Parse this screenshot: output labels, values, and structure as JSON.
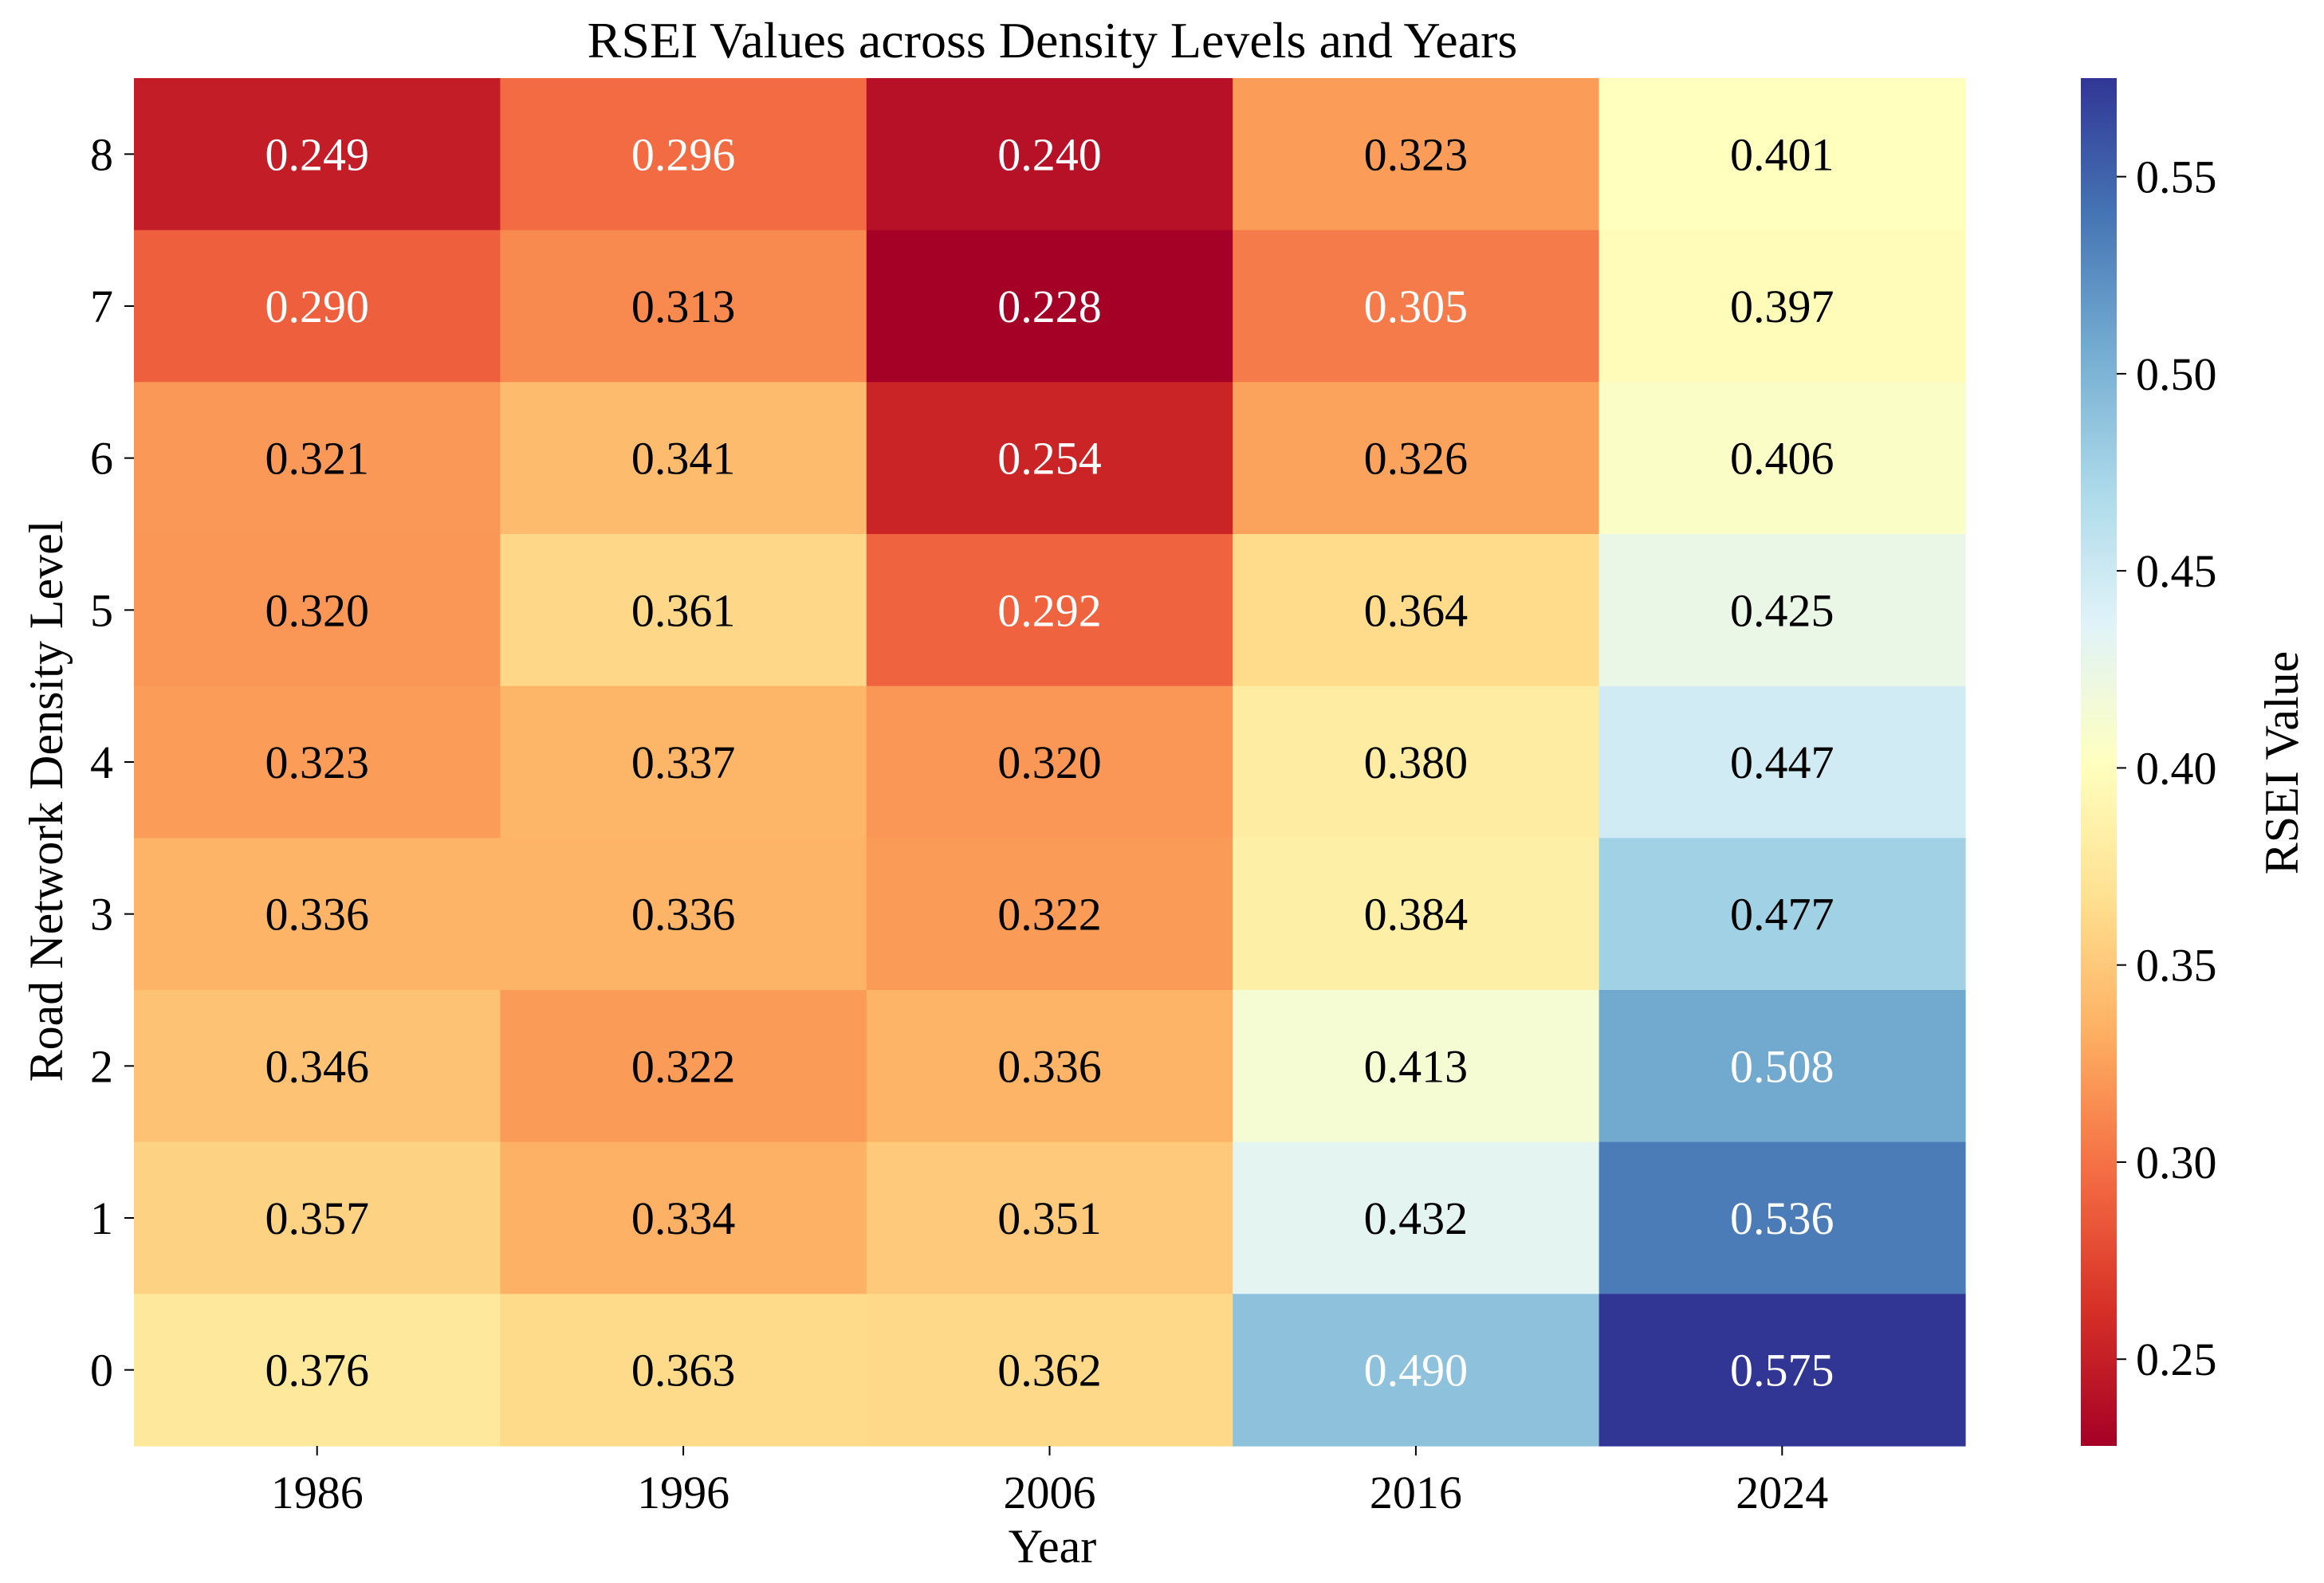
{
  "chart_data": {
    "type": "heatmap",
    "title": "RSEI Values across Density Levels and Years",
    "xlabel": "Year",
    "ylabel": "Road Network Density Level",
    "x_categories": [
      "1986",
      "1996",
      "2006",
      "2016",
      "2024"
    ],
    "y_categories": [
      "8",
      "7",
      "6",
      "5",
      "4",
      "3",
      "2",
      "1",
      "0"
    ],
    "values": [
      [
        0.249,
        0.296,
        0.24,
        0.323,
        0.401
      ],
      [
        0.29,
        0.313,
        0.228,
        0.305,
        0.397
      ],
      [
        0.321,
        0.341,
        0.254,
        0.326,
        0.406
      ],
      [
        0.32,
        0.361,
        0.292,
        0.364,
        0.425
      ],
      [
        0.323,
        0.337,
        0.32,
        0.38,
        0.447
      ],
      [
        0.336,
        0.336,
        0.322,
        0.384,
        0.477
      ],
      [
        0.346,
        0.322,
        0.336,
        0.413,
        0.508
      ],
      [
        0.357,
        0.334,
        0.351,
        0.432,
        0.536
      ],
      [
        0.376,
        0.363,
        0.362,
        0.49,
        0.575
      ]
    ],
    "cell_labels": [
      [
        "0.249",
        "0.296",
        "0.240",
        "0.323",
        "0.401"
      ],
      [
        "0.290",
        "0.313",
        "0.228",
        "0.305",
        "0.397"
      ],
      [
        "0.321",
        "0.341",
        "0.254",
        "0.326",
        "0.406"
      ],
      [
        "0.320",
        "0.361",
        "0.292",
        "0.364",
        "0.425"
      ],
      [
        "0.323",
        "0.337",
        "0.320",
        "0.380",
        "0.447"
      ],
      [
        "0.336",
        "0.336",
        "0.322",
        "0.384",
        "0.477"
      ],
      [
        "0.346",
        "0.322",
        "0.336",
        "0.413",
        "0.508"
      ],
      [
        "0.357",
        "0.334",
        "0.351",
        "0.432",
        "0.536"
      ],
      [
        "0.376",
        "0.363",
        "0.362",
        "0.490",
        "0.575"
      ]
    ],
    "colormap": "RdYlBu",
    "value_range": [
      0.228,
      0.575
    ],
    "colorbar": {
      "label": "RSEI Value",
      "ticks": [
        0.25,
        0.3,
        0.35,
        0.4,
        0.45,
        0.5,
        0.55
      ],
      "tick_labels": [
        "0.25",
        "0.30",
        "0.35",
        "0.40",
        "0.45",
        "0.50",
        "0.55"
      ]
    },
    "colors": {
      "scale": [
        "#a50026",
        "#d73027",
        "#f46d43",
        "#fdae61",
        "#fee090",
        "#ffffbf",
        "#e0f3f8",
        "#abd9e9",
        "#74add1",
        "#4575b4",
        "#313695"
      ],
      "light_text": "#ffffff",
      "dark_text": "#000000"
    }
  }
}
